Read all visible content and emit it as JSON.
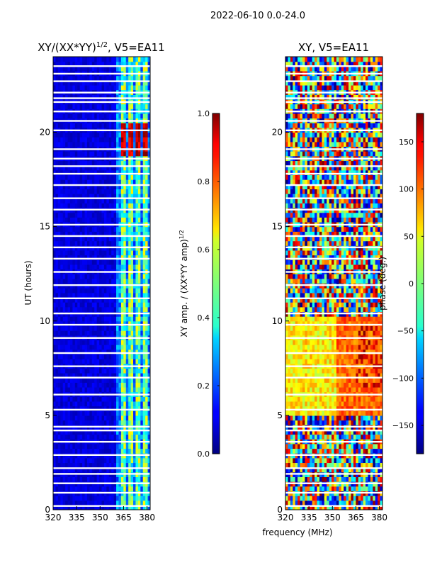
{
  "suptitle": "2022-06-10 0.0-24.0",
  "colormap": "jet",
  "chart_data": [
    {
      "type": "heatmap",
      "title_main": "XY/(XX*YY)",
      "title_sup": "1/2",
      "title_tail": ", V5=EA11",
      "xlabel": "",
      "ylabel": "UT (hours)",
      "xlim": [
        320,
        382
      ],
      "ylim": [
        0,
        24
      ],
      "xticks": [
        "320",
        "335",
        "350",
        "365",
        "380"
      ],
      "yticks": [
        "0",
        "5",
        "10",
        "15",
        "20"
      ],
      "bright_channel_bands_MHz": [
        [
          363,
          366
        ],
        [
          368,
          371
        ],
        [
          373,
          376
        ],
        [
          377,
          381
        ]
      ],
      "flagged_utc_hours": [
        0.2,
        0.9,
        1.4,
        1.9,
        2.2,
        2.9,
        3.6,
        4.2,
        4.4,
        5.3,
        6.1,
        7.0,
        7.6,
        8.3,
        9.1,
        9.8,
        10.4,
        11.2,
        11.9,
        12.6,
        13.3,
        13.9,
        14.5,
        15.1,
        15.9,
        16.5,
        17.2,
        17.8,
        18.2,
        18.6,
        19.1,
        20.1,
        20.6,
        21.1,
        21.6,
        21.8,
        22.1,
        22.7,
        23.1,
        23.5
      ],
      "colorbar": {
        "label_main": "XY amp. / (XX*YY amp)",
        "label_sup": "1/2",
        "range": [
          0.0,
          1.0
        ],
        "ticks": [
          "0.0",
          "0.2",
          "0.4",
          "0.6",
          "0.8",
          "1.0"
        ]
      }
    },
    {
      "type": "heatmap",
      "title": "XY, V5=EA11",
      "xlabel": "frequency (MHz)",
      "ylabel": "",
      "xlim": [
        320,
        382
      ],
      "ylim": [
        0,
        24
      ],
      "xticks": [
        "320",
        "335",
        "350",
        "365",
        "380"
      ],
      "yticks": [
        "0",
        "5",
        "10",
        "15",
        "20"
      ],
      "flagged_utc_hours": [
        0.2,
        0.9,
        1.4,
        1.9,
        2.2,
        2.9,
        3.6,
        4.2,
        4.4,
        5.3,
        6.1,
        7.0,
        7.6,
        8.3,
        9.1,
        9.8,
        10.4,
        11.2,
        11.9,
        12.6,
        13.3,
        13.9,
        14.5,
        15.1,
        15.9,
        16.5,
        17.2,
        17.8,
        18.2,
        18.6,
        19.1,
        20.1,
        20.6,
        21.1,
        21.6,
        21.8,
        22.1,
        22.7,
        23.1,
        23.5
      ],
      "colorbar": {
        "label": "phase (deg.)",
        "range": [
          -180,
          180
        ],
        "ticks": [
          "−150",
          "−100",
          "−50",
          "0",
          "50",
          "100",
          "150"
        ]
      }
    }
  ]
}
